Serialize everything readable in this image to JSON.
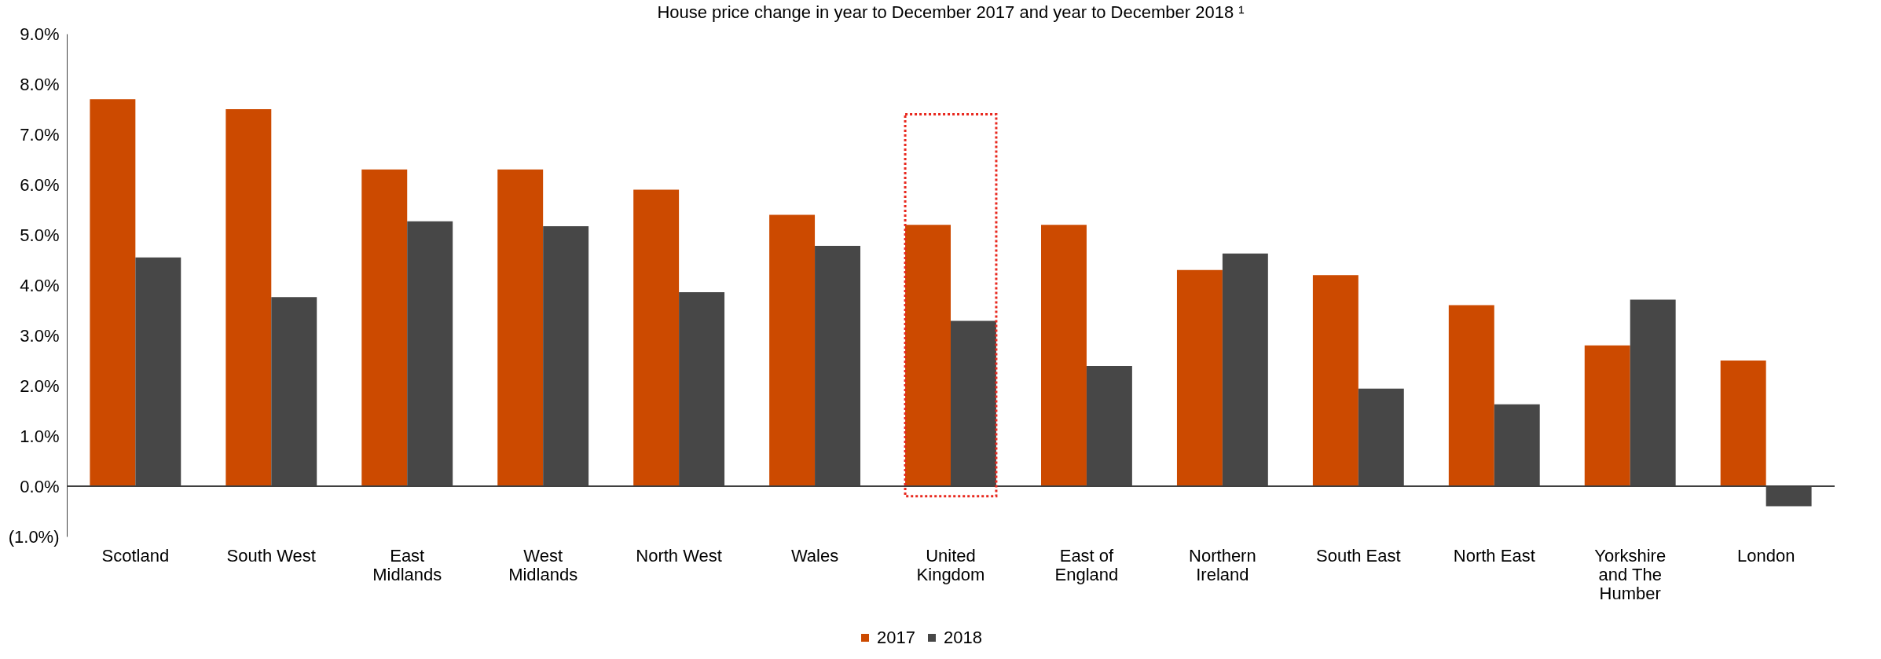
{
  "chart_data": {
    "type": "bar",
    "title": "House price change in year to December 2017 and year to December 2018 ¹",
    "categories": [
      "Scotland",
      "South West",
      "East\nMidlands",
      "West\nMidlands",
      "North West",
      "Wales",
      "United\nKingdom",
      "East of\nEngland",
      "Northern\nIreland",
      "South East",
      "North East",
      "Yorkshire\nand The\nHumber",
      "London"
    ],
    "series": [
      {
        "name": "2017",
        "color": "#cc4a00",
        "values": [
          7.7,
          7.5,
          6.3,
          6.3,
          5.9,
          5.4,
          5.2,
          5.2,
          4.3,
          4.2,
          3.6,
          2.8,
          2.5
        ]
      },
      {
        "name": "2018",
        "color": "#474747",
        "values": [
          4.55,
          3.76,
          5.27,
          5.17,
          3.86,
          4.78,
          3.29,
          2.39,
          4.63,
          1.94,
          1.63,
          3.71,
          -0.4
        ]
      }
    ],
    "ylim": [
      -1,
      9
    ],
    "yticks": [
      {
        "value": -1,
        "label": "(1.0%)"
      },
      {
        "value": 0,
        "label": "0.0%"
      },
      {
        "value": 1,
        "label": "1.0%"
      },
      {
        "value": 2,
        "label": "2.0%"
      },
      {
        "value": 3,
        "label": "3.0%"
      },
      {
        "value": 4,
        "label": "4.0%"
      },
      {
        "value": 5,
        "label": "5.0%"
      },
      {
        "value": 6,
        "label": "6.0%"
      },
      {
        "value": 7,
        "label": "7.0%"
      },
      {
        "value": 8,
        "label": "8.0%"
      },
      {
        "value": 9,
        "label": "9.0%"
      }
    ],
    "legend": "bottom"
  }
}
